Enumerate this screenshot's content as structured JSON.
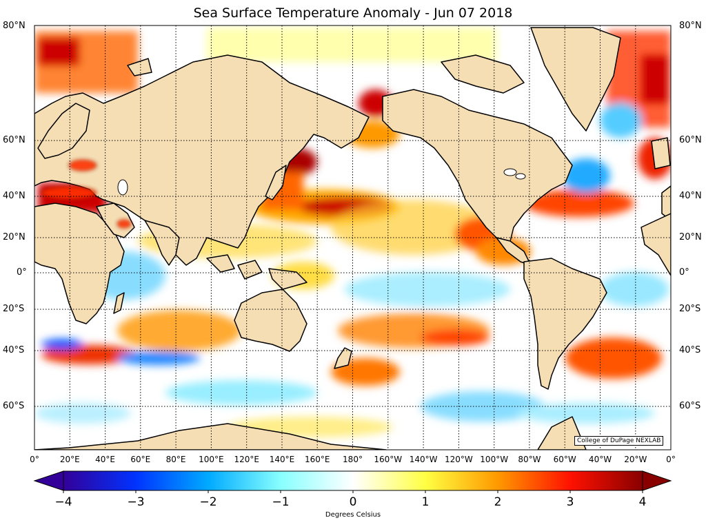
{
  "title": "Sea Surface Temperature Anomaly - Jun 07 2018",
  "credit": "College of DuPage NEXLAB",
  "lat_labels": [
    "80°N",
    "60°N",
    "40°N",
    "20°N",
    "0°",
    "20°S",
    "40°S",
    "60°S"
  ],
  "lon_labels": [
    "0°",
    "20°E",
    "40°E",
    "60°E",
    "80°E",
    "100°E",
    "120°E",
    "140°E",
    "160°E",
    "180°",
    "160°W",
    "140°W",
    "120°W",
    "100°W",
    "80°W",
    "60°W",
    "40°W",
    "20°W",
    "0°"
  ],
  "colorbar": {
    "ticks": [
      "−4",
      "−3",
      "−2",
      "−1",
      "0",
      "1",
      "2",
      "3",
      "4"
    ],
    "label": "Degrees Celsius",
    "min": -4,
    "max": 4
  },
  "colors": {
    "land": "#f5deb3",
    "coast": "#000000",
    "ocean_neutral": "#ffffff",
    "warm_1": "#ffff66",
    "warm_2": "#ffa500",
    "warm_3": "#ff3300",
    "warm_4": "#990000",
    "cool_1": "#99ffff",
    "cool_2": "#33bbff",
    "cool_3": "#0044ff",
    "cool_4": "#330099"
  }
}
